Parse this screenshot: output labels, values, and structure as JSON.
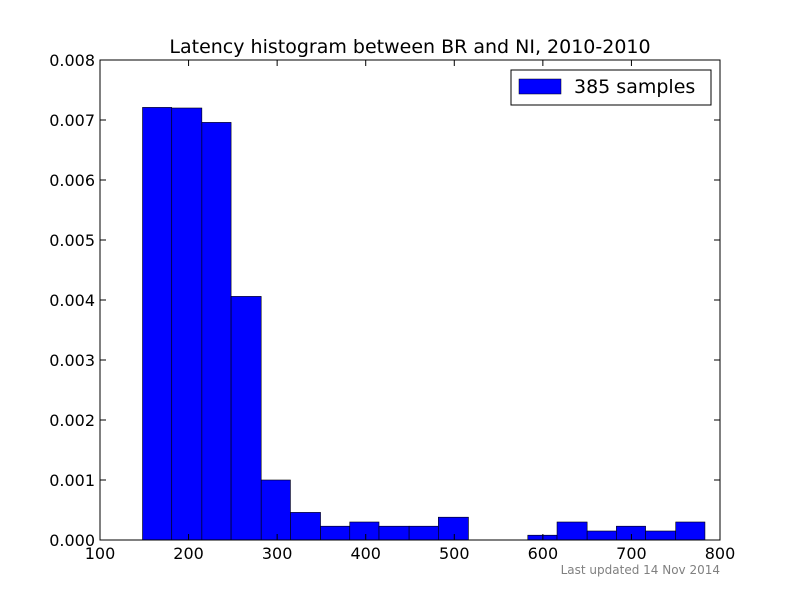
{
  "chart_data": {
    "type": "bar",
    "title": "Latency histogram between BR and NI, 2010-2010",
    "xlabel": "",
    "ylabel": "",
    "xlim": [
      100,
      800
    ],
    "ylim": [
      0,
      0.008
    ],
    "xticks": [
      "100",
      "200",
      "300",
      "400",
      "500",
      "600",
      "700",
      "800"
    ],
    "yticks": [
      "0.000",
      "0.001",
      "0.002",
      "0.003",
      "0.004",
      "0.005",
      "0.006",
      "0.007",
      "0.008"
    ],
    "grid": false,
    "legend_position": "top-right",
    "series": [
      {
        "name": "385 samples",
        "color": "#0000ff",
        "bins": [
          {
            "x0": 148,
            "x1": 181,
            "value": 0.00721
          },
          {
            "x0": 181,
            "x1": 215,
            "value": 0.0072
          },
          {
            "x0": 215,
            "x1": 248,
            "value": 0.00696
          },
          {
            "x0": 248,
            "x1": 282,
            "value": 0.00406
          },
          {
            "x0": 282,
            "x1": 315,
            "value": 0.001
          },
          {
            "x0": 315,
            "x1": 349,
            "value": 0.00046
          },
          {
            "x0": 349,
            "x1": 382,
            "value": 0.00023
          },
          {
            "x0": 382,
            "x1": 415,
            "value": 0.0003
          },
          {
            "x0": 415,
            "x1": 449,
            "value": 0.00023
          },
          {
            "x0": 449,
            "x1": 482,
            "value": 0.00023
          },
          {
            "x0": 482,
            "x1": 516,
            "value": 0.00038
          },
          {
            "x0": 516,
            "x1": 549,
            "value": 0.0
          },
          {
            "x0": 549,
            "x1": 583,
            "value": 0.0
          },
          {
            "x0": 583,
            "x1": 616,
            "value": 8e-05
          },
          {
            "x0": 616,
            "x1": 650,
            "value": 0.0003
          },
          {
            "x0": 650,
            "x1": 683,
            "value": 0.00015
          },
          {
            "x0": 683,
            "x1": 716,
            "value": 0.00023
          },
          {
            "x0": 716,
            "x1": 750,
            "value": 0.00015
          },
          {
            "x0": 750,
            "x1": 783,
            "value": 0.0003
          }
        ]
      }
    ]
  },
  "footer": {
    "text": "Last updated 14 Nov 2014"
  }
}
